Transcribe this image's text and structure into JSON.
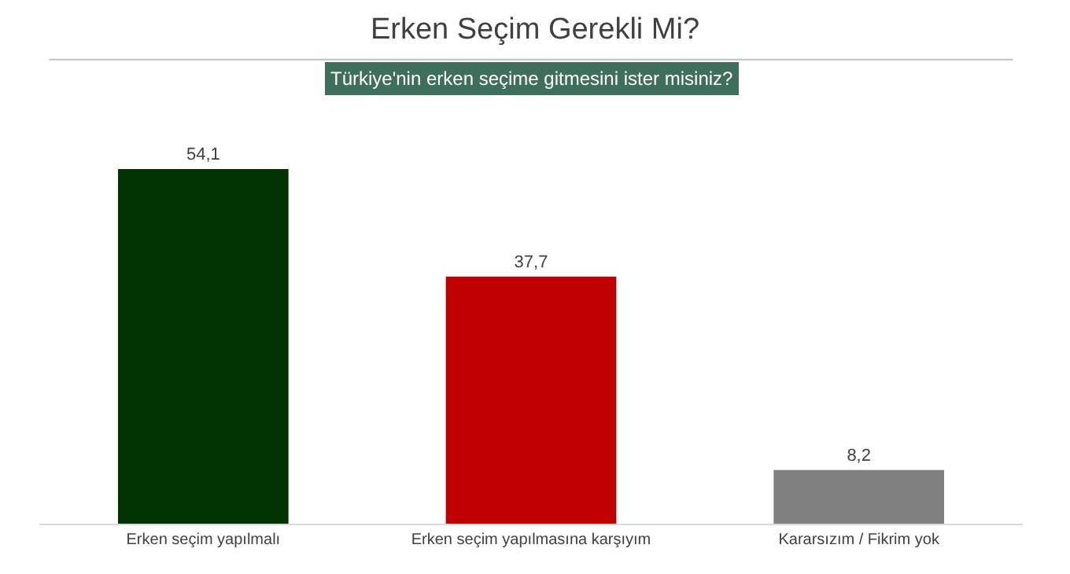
{
  "chart_data": {
    "type": "bar",
    "title": "Erken Seçim Gerekli Mi?",
    "subtitle": "Türkiye'nin erken seçime gitmesini ister misiniz?",
    "categories": [
      "Erken seçim yapılmalı",
      "Erken seçim yapılmasına karşıyım",
      "Kararsızım / Fikrim yok"
    ],
    "values": [
      54.1,
      37.7,
      8.2
    ],
    "colors": [
      "#003300",
      "#c00000",
      "#808080"
    ],
    "value_labels": [
      "54,1",
      "37,7",
      "8,2"
    ],
    "legend": false
  }
}
